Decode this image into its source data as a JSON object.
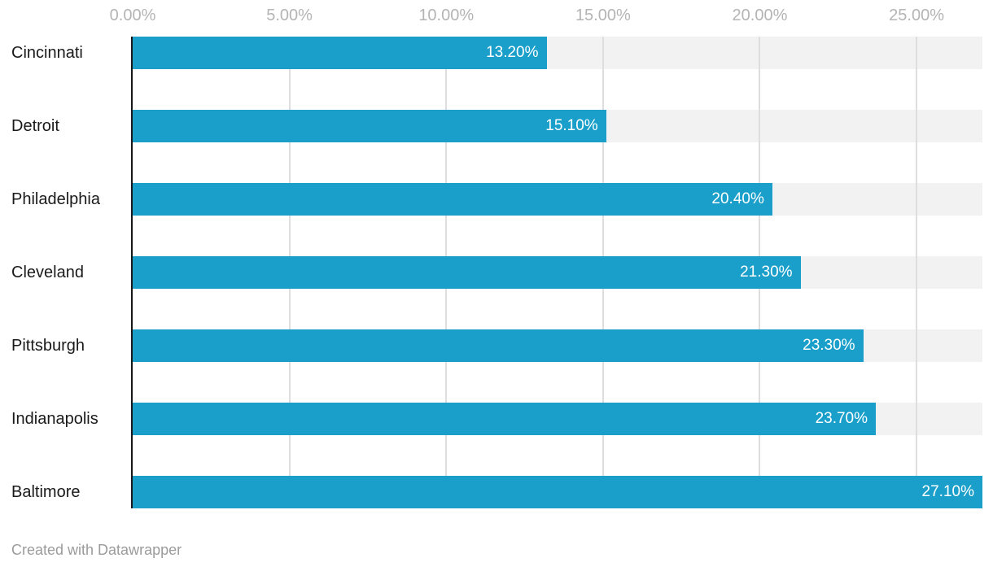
{
  "chart_data": {
    "type": "bar",
    "orientation": "horizontal",
    "title": "",
    "categories": [
      "Cincinnati",
      "Detroit",
      "Philadelphia",
      "Cleveland",
      "Pittsburgh",
      "Indianapolis",
      "Baltimore"
    ],
    "values": [
      13.2,
      15.1,
      20.4,
      21.3,
      23.3,
      23.7,
      27.1
    ],
    "value_labels": [
      "13.20%",
      "15.10%",
      "20.40%",
      "21.30%",
      "23.30%",
      "23.70%",
      "27.10%"
    ],
    "x_ticks": [
      0,
      5,
      10,
      15,
      20,
      25
    ],
    "x_tick_labels": [
      "0.00%",
      "5.00%",
      "10.00%",
      "15.00%",
      "20.00%",
      "25.00%"
    ],
    "xlim": [
      0,
      27.1
    ],
    "grid": true,
    "legend": "none",
    "colors": {
      "bar": "#1a9fca",
      "track": "#f2f2f2",
      "gridline": "#dedede",
      "axis_line": "#181818",
      "tick_label": "#b4b4b4",
      "category_label": "#1a1a1a",
      "value_label": "#ffffff"
    }
  },
  "footer": {
    "attribution": "Created with Datawrapper"
  }
}
